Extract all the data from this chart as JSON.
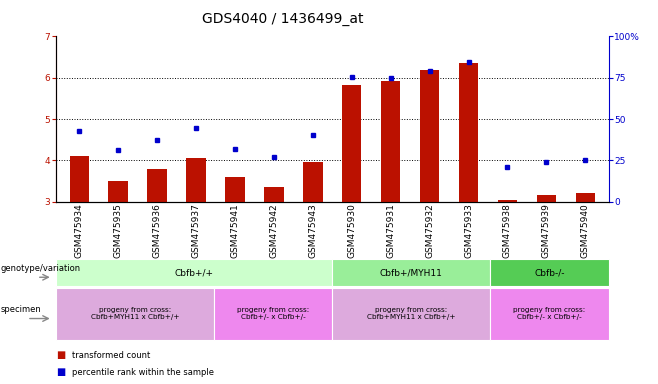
{
  "title": "GDS4040 / 1436499_at",
  "samples": [
    "GSM475934",
    "GSM475935",
    "GSM475936",
    "GSM475937",
    "GSM475941",
    "GSM475942",
    "GSM475943",
    "GSM475930",
    "GSM475931",
    "GSM475932",
    "GSM475933",
    "GSM475938",
    "GSM475939",
    "GSM475940"
  ],
  "bar_values": [
    4.1,
    3.5,
    3.8,
    4.05,
    3.6,
    3.35,
    3.95,
    5.82,
    5.92,
    6.2,
    6.35,
    3.05,
    3.15,
    3.22
  ],
  "dot_values": [
    4.7,
    4.25,
    4.5,
    4.78,
    4.27,
    4.08,
    4.62,
    6.02,
    6.0,
    6.17,
    6.38,
    3.85,
    3.97,
    4.0
  ],
  "ylim_left": [
    3,
    7
  ],
  "ylim_right": [
    0,
    100
  ],
  "yticks_left": [
    3,
    4,
    5,
    6,
    7
  ],
  "yticks_right": [
    0,
    25,
    50,
    75,
    100
  ],
  "bar_color": "#bb1100",
  "dot_color": "#0000cc",
  "bar_bottom": 3.0,
  "genotype_groups": [
    {
      "label": "Cbfb+/+",
      "start": 0,
      "end": 7,
      "color": "#ccffcc"
    },
    {
      "label": "Cbfb+/MYH11",
      "start": 7,
      "end": 11,
      "color": "#99ee99"
    },
    {
      "label": "Cbfb-/-",
      "start": 11,
      "end": 14,
      "color": "#55cc55"
    }
  ],
  "specimen_groups": [
    {
      "label": "progeny from cross:\nCbfb+MYH11 x Cbfb+/+",
      "start": 0,
      "end": 4,
      "color": "#ddaadd"
    },
    {
      "label": "progeny from cross:\nCbfb+/- x Cbfb+/-",
      "start": 4,
      "end": 7,
      "color": "#ee88ee"
    },
    {
      "label": "progeny from cross:\nCbfb+MYH11 x Cbfb+/+",
      "start": 7,
      "end": 11,
      "color": "#ddaadd"
    },
    {
      "label": "progeny from cross:\nCbfb+/- x Cbfb+/-",
      "start": 11,
      "end": 14,
      "color": "#ee88ee"
    }
  ],
  "genotype_label": "genotype/variation",
  "specimen_label": "specimen",
  "legend_bar": "transformed count",
  "legend_dot": "percentile rank within the sample",
  "title_fontsize": 10,
  "tick_fontsize": 6.5,
  "label_fontsize": 7
}
